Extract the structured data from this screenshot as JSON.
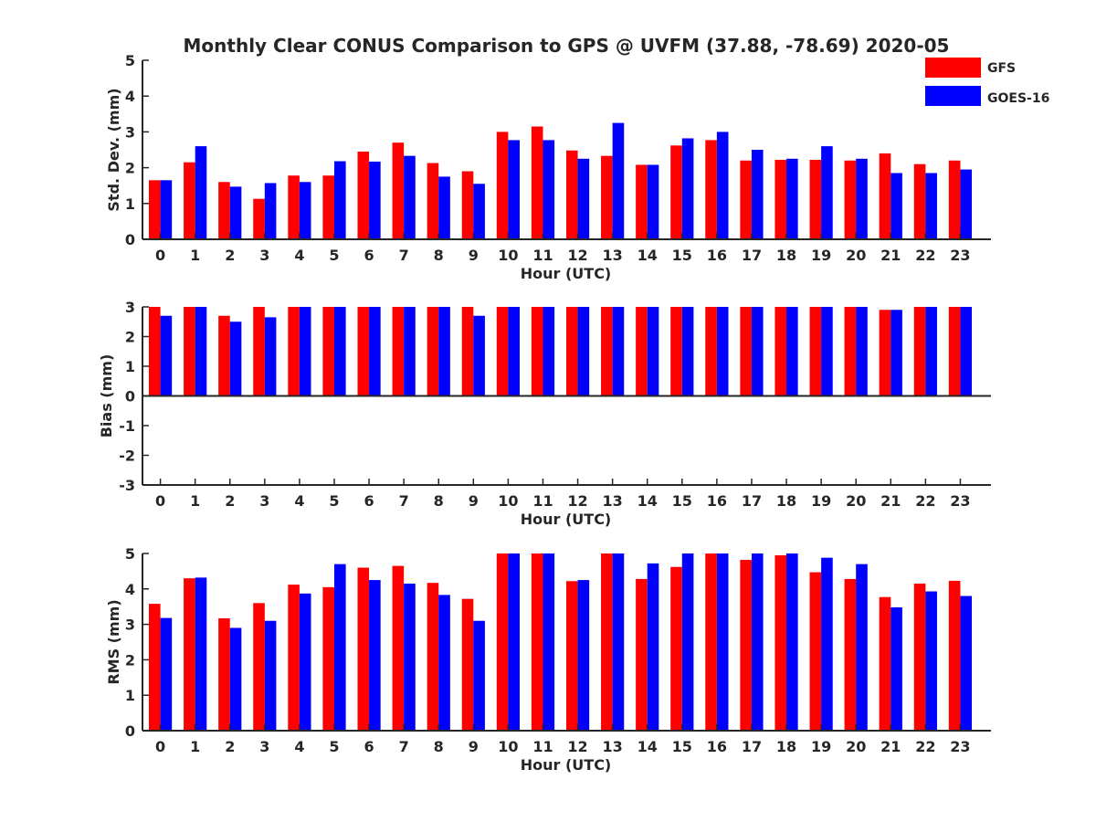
{
  "chart_data": {
    "title": "Monthly Clear CONUS Comparison to GPS @ UVFM (37.88, -78.69) 2020-05",
    "legend": {
      "placement": "top-right",
      "entries": [
        {
          "name": "GFS",
          "color": "#ff0000"
        },
        {
          "name": "GOES-16",
          "color": "#0000ff"
        }
      ]
    },
    "panels": [
      {
        "type": "bar",
        "xlabel": "Hour (UTC)",
        "ylabel": "Std. Dev. (mm)",
        "ylim": [
          0,
          5
        ],
        "yticks": [
          0,
          1,
          2,
          3,
          4,
          5
        ],
        "categories": [
          "0",
          "1",
          "2",
          "3",
          "4",
          "5",
          "6",
          "7",
          "8",
          "9",
          "10",
          "11",
          "12",
          "13",
          "14",
          "15",
          "16",
          "17",
          "18",
          "19",
          "20",
          "21",
          "22",
          "23"
        ],
        "series": [
          {
            "name": "GFS",
            "color": "#ff0000",
            "values": [
              1.65,
              2.15,
              1.6,
              1.13,
              1.78,
              1.78,
              2.45,
              2.7,
              2.13,
              1.9,
              3.0,
              3.15,
              2.48,
              2.33,
              2.08,
              2.62,
              2.77,
              2.2,
              2.22,
              2.22,
              2.2,
              2.4,
              2.1,
              2.2
            ]
          },
          {
            "name": "GOES-16",
            "color": "#0000ff",
            "values": [
              1.65,
              2.6,
              1.47,
              1.57,
              1.6,
              2.18,
              2.17,
              2.33,
              1.75,
              1.55,
              2.77,
              2.77,
              2.25,
              3.25,
              2.08,
              2.82,
              3.0,
              2.5,
              2.25,
              2.6,
              2.25,
              1.85,
              1.85,
              1.95
            ]
          }
        ]
      },
      {
        "type": "bar",
        "xlabel": "Hour (UTC)",
        "ylabel": "Bias (mm)",
        "ylim": [
          -3,
          3
        ],
        "yticks": [
          -3,
          -2,
          -1,
          0,
          1,
          2,
          3
        ],
        "categories": [
          "0",
          "1",
          "2",
          "3",
          "4",
          "5",
          "6",
          "7",
          "8",
          "9",
          "10",
          "11",
          "12",
          "13",
          "14",
          "15",
          "16",
          "17",
          "18",
          "19",
          "20",
          "21",
          "22",
          "23"
        ],
        "series": [
          {
            "name": "GFS",
            "color": "#ff0000",
            "values": [
              3,
              3,
              2.7,
              3,
              3,
              3,
              3,
              3,
              3,
              3,
              3,
              3,
              3,
              3,
              3,
              3,
              3,
              3,
              3,
              3,
              3,
              2.9,
              3,
              3
            ]
          },
          {
            "name": "GOES-16",
            "color": "#0000ff",
            "values": [
              2.7,
              3,
              2.5,
              2.65,
              3,
              3,
              3,
              3,
              3,
              2.7,
              3,
              3,
              3,
              3,
              3,
              3,
              3,
              3,
              3,
              3,
              3,
              2.9,
              3,
              3
            ]
          }
        ]
      },
      {
        "type": "bar",
        "xlabel": "Hour (UTC)",
        "ylabel": "RMS (mm)",
        "ylim": [
          0,
          5
        ],
        "yticks": [
          0,
          1,
          2,
          3,
          4,
          5
        ],
        "categories": [
          "0",
          "1",
          "2",
          "3",
          "4",
          "5",
          "6",
          "7",
          "8",
          "9",
          "10",
          "11",
          "12",
          "13",
          "14",
          "15",
          "16",
          "17",
          "18",
          "19",
          "20",
          "21",
          "22",
          "23"
        ],
        "series": [
          {
            "name": "GFS",
            "color": "#ff0000",
            "values": [
              3.58,
              4.3,
              3.17,
              3.6,
              4.12,
              4.05,
              4.6,
              4.65,
              4.17,
              3.72,
              5.0,
              5.0,
              4.22,
              5.0,
              4.28,
              4.62,
              5.0,
              4.82,
              4.95,
              4.47,
              4.28,
              3.77,
              4.15,
              4.23
            ]
          },
          {
            "name": "GOES-16",
            "color": "#0000ff",
            "values": [
              3.18,
              4.32,
              2.9,
              3.1,
              3.87,
              4.7,
              4.25,
              4.15,
              3.83,
              3.1,
              5.0,
              5.0,
              4.25,
              5.0,
              4.72,
              5.0,
              5.0,
              5.0,
              5.0,
              4.88,
              4.7,
              3.48,
              3.93,
              3.8
            ]
          }
        ]
      }
    ]
  }
}
